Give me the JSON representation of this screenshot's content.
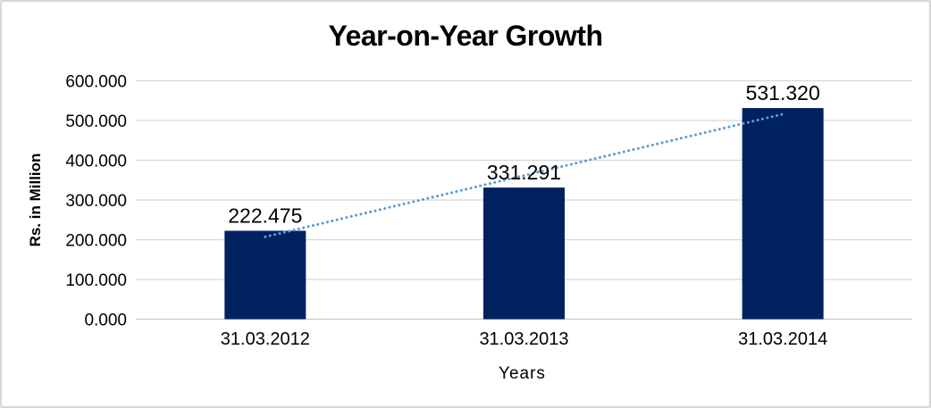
{
  "frame": {
    "background": "#ffffff",
    "border_color": "#d6d6d6"
  },
  "chart_data": {
    "type": "bar",
    "title": "Year-on-Year Growth",
    "xlabel": "Years",
    "ylabel": "Rs. in Million",
    "categories": [
      "31.03.2012",
      "31.03.2013",
      "31.03.2014"
    ],
    "values": [
      222.475,
      331.291,
      531.32
    ],
    "data_labels": [
      "222.475",
      "331.291",
      "531.320"
    ],
    "y_tick_values": [
      0,
      100,
      200,
      300,
      400,
      500,
      600
    ],
    "y_tick_labels": [
      "0.000",
      "100.000",
      "200.000",
      "300.000",
      "400.000",
      "500.000",
      "600.000"
    ],
    "ylim": [
      0,
      600
    ],
    "grid": true,
    "legend": "none",
    "trendline": {
      "type": "linear",
      "style": "dotted"
    },
    "colors": {
      "bar": "#002160",
      "trendline": "#5b9bd5",
      "gridline": "#d6d6d6",
      "axis_line": "#c9c9c9",
      "text": "#000000"
    }
  }
}
